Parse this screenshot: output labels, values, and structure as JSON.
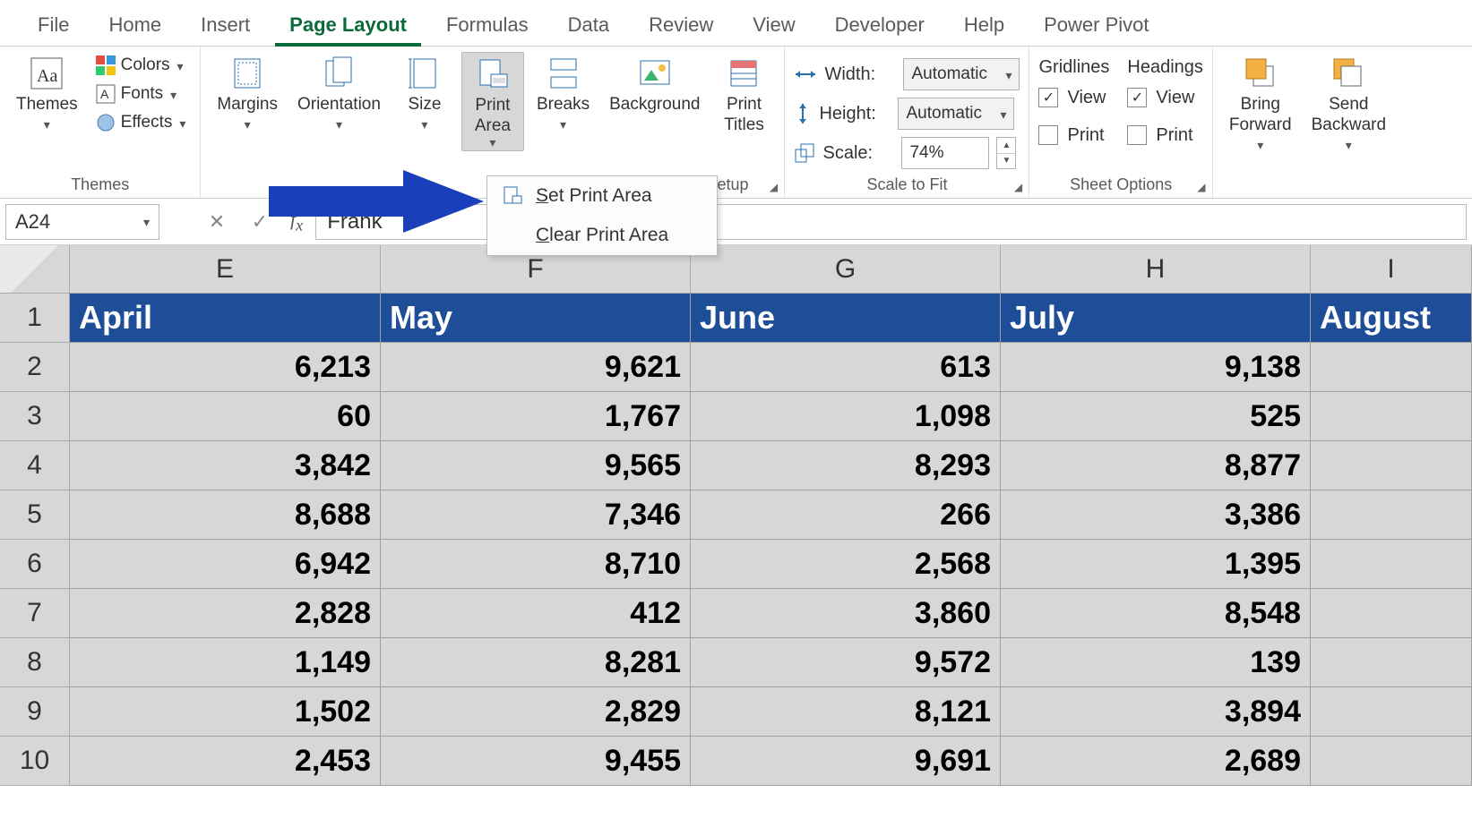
{
  "tabs": {
    "file": "File",
    "home": "Home",
    "insert": "Insert",
    "page_layout": "Page Layout",
    "formulas": "Formulas",
    "data": "Data",
    "review": "Review",
    "view": "View",
    "developer": "Developer",
    "help": "Help",
    "power_pivot": "Power Pivot"
  },
  "ribbon": {
    "themes": {
      "themes": "Themes",
      "colors": "Colors",
      "fonts": "Fonts",
      "effects": "Effects",
      "group_label": "Themes"
    },
    "page_setup": {
      "margins": "Margins",
      "orientation": "Orientation",
      "size": "Size",
      "print_area": "Print\nArea",
      "breaks": "Breaks",
      "background": "Background",
      "print_titles": "Print\nTitles",
      "group_label": "Page Setup"
    },
    "scale": {
      "width_label": "Width:",
      "height_label": "Height:",
      "scale_label": "Scale:",
      "width_value": "Automatic",
      "height_value": "Automatic",
      "scale_value": "74%",
      "group_label": "Scale to Fit"
    },
    "sheet": {
      "gridlines": "Gridlines",
      "headings": "Headings",
      "view": "View",
      "print": "Print",
      "group_label": "Sheet Options"
    },
    "arrange": {
      "bring_forward": "Bring\nForward",
      "send_backward": "Send\nBackward"
    }
  },
  "print_menu": {
    "set": {
      "prefix": "S",
      "rest": "et Print Area"
    },
    "clear": {
      "prefix": "C",
      "rest": "lear Print Area"
    }
  },
  "name_box": "A24",
  "formula_value": "Frank",
  "col_headers": [
    "E",
    "F",
    "G",
    "H",
    "I"
  ],
  "row_numbers": [
    "1",
    "2",
    "3",
    "4",
    "5",
    "6",
    "7",
    "8",
    "9",
    "10"
  ],
  "months": {
    "E": "April",
    "F": "May",
    "G": "June",
    "H": "July",
    "I": "August"
  },
  "data_rows": [
    {
      "E": "6,213",
      "F": "9,621",
      "G": "613",
      "H": "9,138",
      "I": ""
    },
    {
      "E": "60",
      "F": "1,767",
      "G": "1,098",
      "H": "525",
      "I": ""
    },
    {
      "E": "3,842",
      "F": "9,565",
      "G": "8,293",
      "H": "8,877",
      "I": ""
    },
    {
      "E": "8,688",
      "F": "7,346",
      "G": "266",
      "H": "3,386",
      "I": ""
    },
    {
      "E": "6,942",
      "F": "8,710",
      "G": "2,568",
      "H": "1,395",
      "I": ""
    },
    {
      "E": "2,828",
      "F": "412",
      "G": "3,860",
      "H": "8,548",
      "I": ""
    },
    {
      "E": "1,149",
      "F": "8,281",
      "G": "9,572",
      "H": "139",
      "I": ""
    },
    {
      "E": "1,502",
      "F": "2,829",
      "G": "8,121",
      "H": "3,894",
      "I": ""
    },
    {
      "E": "2,453",
      "F": "9,455",
      "G": "9,691",
      "H": "2,689",
      "I": ""
    }
  ],
  "colors": {
    "accent_arrow": "#1a3fba",
    "header_row_bg": "#1f4e99",
    "selection_bg": "#d7d7d7",
    "active_tab": "#0b6a3a"
  }
}
